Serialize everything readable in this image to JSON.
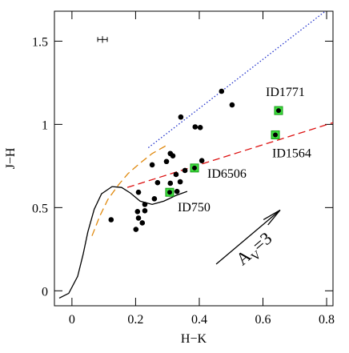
{
  "chart_data": {
    "type": "scatter",
    "xlabel": "H−K",
    "ylabel": "J−H",
    "xlim": [
      -0.055,
      0.82
    ],
    "ylim": [
      -0.09,
      1.68
    ],
    "xticks": [
      0,
      0.2,
      0.4,
      0.6,
      0.8
    ],
    "yticks": [
      0,
      0.5,
      1,
      1.5
    ],
    "points": {
      "color": "#000000",
      "x": [
        0.47,
        0.503,
        0.342,
        0.387,
        0.403,
        0.252,
        0.309,
        0.317,
        0.297,
        0.408,
        0.355,
        0.327,
        0.269,
        0.309,
        0.34,
        0.33,
        0.209,
        0.259,
        0.229,
        0.206,
        0.229,
        0.209,
        0.221,
        0.201,
        0.123
      ],
      "y": [
        1.199,
        1.117,
        1.044,
        0.985,
        0.981,
        0.757,
        0.825,
        0.811,
        0.777,
        0.782,
        0.723,
        0.699,
        0.65,
        0.646,
        0.655,
        0.597,
        0.592,
        0.553,
        0.519,
        0.476,
        0.481,
        0.437,
        0.408,
        0.369,
        0.427
      ]
    },
    "highlighted": {
      "color": "#3ee03e",
      "labels": [
        "ID1771",
        "ID1564",
        "ID6506",
        "ID750"
      ],
      "x": [
        0.649,
        0.639,
        0.385,
        0.307
      ],
      "y": [
        1.083,
        0.937,
        0.738,
        0.592
      ]
    },
    "lines": [
      {
        "style": "dotted",
        "color": "#2233cc",
        "x": [
          0.24,
          0.796
        ],
        "y": [
          0.86,
          1.68
        ]
      },
      {
        "style": "dashed",
        "color": "#dd1111",
        "x": [
          0.174,
          0.82
        ],
        "y": [
          0.621,
          1.01
        ]
      },
      {
        "style": "dashed",
        "color": "#e08a10",
        "x": [
          0.063,
          0.088,
          0.113,
          0.146,
          0.176,
          0.214,
          0.252,
          0.302
        ],
        "y": [
          0.33,
          0.451,
          0.549,
          0.636,
          0.704,
          0.767,
          0.825,
          0.879
        ]
      },
      {
        "style": "solid",
        "color": "#000000",
        "x": [
          -0.04,
          -0.01,
          0.018,
          0.035,
          0.05,
          0.07,
          0.093,
          0.126,
          0.156,
          0.184,
          0.214,
          0.252,
          0.289,
          0.327,
          0.362
        ],
        "y": [
          -0.044,
          -0.015,
          0.087,
          0.218,
          0.354,
          0.49,
          0.583,
          0.626,
          0.621,
          0.587,
          0.539,
          0.519,
          0.539,
          0.573,
          0.597
        ]
      }
    ],
    "error_bar": {
      "x": 0.096,
      "y": 1.51,
      "xerr": 0.015,
      "yerr": 0.02
    },
    "arrow": {
      "x": [
        0.453,
        0.654
      ],
      "y": [
        0.16,
        0.485
      ],
      "label_main": "A",
      "label_sub": "V",
      "label_rest": "=3"
    }
  }
}
